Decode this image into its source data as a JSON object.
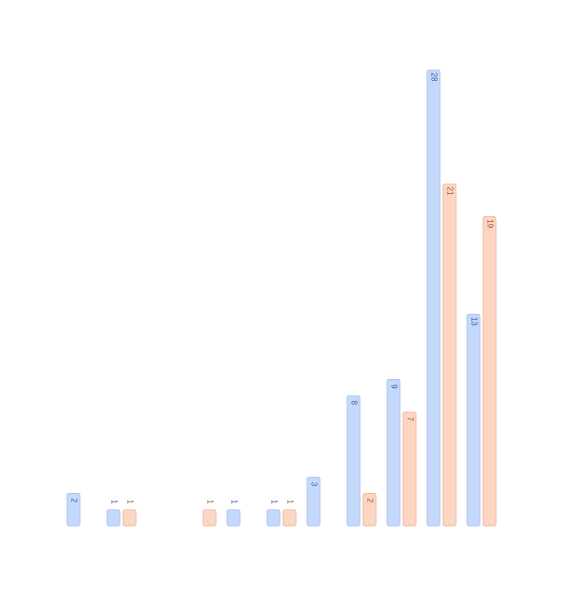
{
  "chart_data": {
    "type": "bar",
    "categories": [
      null,
      null,
      null,
      null,
      null,
      null,
      null,
      null,
      null,
      null,
      null
    ],
    "series": [
      {
        "color": "#c6d9fb",
        "values": [
          2,
          1,
          null,
          null,
          1,
          1,
          3,
          8,
          9,
          28,
          13
        ]
      },
      {
        "color": "#fdd6c3",
        "values": [
          null,
          1,
          null,
          1,
          null,
          1,
          null,
          2,
          7,
          21,
          19
        ]
      }
    ],
    "ylim": [
      0,
      28
    ]
  }
}
